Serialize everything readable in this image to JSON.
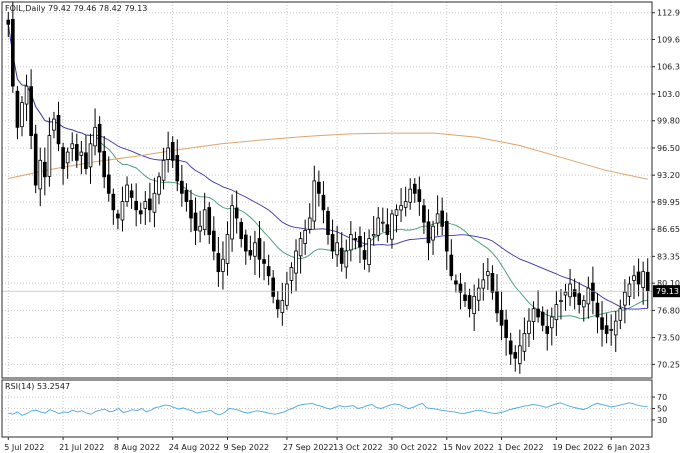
{
  "header": {
    "symbol": "FOIL",
    "timeframe": "Daily",
    "ohlc": "79.42 79.46 78.42 79.13"
  },
  "chart_data": [
    {
      "type": "candlestick",
      "title": "",
      "ylim": [
        68.6,
        114.2
      ],
      "y_ticks": [
        "112.90",
        "109.65",
        "106.35",
        "103.05",
        "99.80",
        "96.50",
        "93.20",
        "89.95",
        "86.65",
        "83.35",
        "80.10",
        "76.80",
        "73.50",
        "70.25"
      ],
      "x_ticks": [
        "5 Jul 2022",
        "21 Jul 2022",
        "8 Aug 2022",
        "24 Aug 2022",
        "9 Sep 2022",
        "27 Sep 2022",
        "13 Oct 2022",
        "30 Oct 2022",
        "15 Nov 2022",
        "1 Dec 2022",
        "19 Dec 2022",
        "6 Jan 2023"
      ],
      "x_tick_index": [
        0,
        12,
        24,
        36,
        48,
        61,
        72,
        84,
        96,
        108,
        120,
        132
      ],
      "current_price": "79.13",
      "closes": [
        111.5,
        104.0,
        99.0,
        102.0,
        104.0,
        98.0,
        92.0,
        95.0,
        93.0,
        98.0,
        100.0,
        97.0,
        94.0,
        96.0,
        97.0,
        95.0,
        96.0,
        94.0,
        97.0,
        99.0,
        96.0,
        93.0,
        91.0,
        89.0,
        88.0,
        90.0,
        92.0,
        90.5,
        89.0,
        88.5,
        90.0,
        89.0,
        91.0,
        93.0,
        95.0,
        96.5,
        95.0,
        92.5,
        91.0,
        90.0,
        88.0,
        86.5,
        87.0,
        89.0,
        86.0,
        84.0,
        81.5,
        83.0,
        86.0,
        89.5,
        88.0,
        85.5,
        84.0,
        83.5,
        85.0,
        83.0,
        82.5,
        81.0,
        78.5,
        77.0,
        78.0,
        80.0,
        82.0,
        84.0,
        85.5,
        86.5,
        88.0,
        92.5,
        91.0,
        89.0,
        86.0,
        84.0,
        85.0,
        82.5,
        84.0,
        86.0,
        85.5,
        84.5,
        83.0,
        85.5,
        86.0,
        88.0,
        87.5,
        86.0,
        88.5,
        89.0,
        89.5,
        90.0,
        91.5,
        91.0,
        90.0,
        87.5,
        85.0,
        87.0,
        88.5,
        87.0,
        84.0,
        81.0,
        80.0,
        79.0,
        78.0,
        77.0,
        78.5,
        79.5,
        80.5,
        81.5,
        79.0,
        76.5,
        75.0,
        73.5,
        71.5,
        71.0,
        72.5,
        74.0,
        75.5,
        77.0,
        76.0,
        75.0,
        74.0,
        76.0,
        77.5,
        78.0,
        79.0,
        80.0,
        78.5,
        77.5,
        78.0,
        79.5,
        78.0,
        76.0,
        74.5,
        74.0,
        74.5,
        75.5,
        77.0,
        79.0,
        80.0,
        81.0,
        80.0,
        81.5,
        79.13
      ],
      "ma_fast": {
        "period": 20,
        "color": "#3d9970"
      },
      "ma_mid": {
        "period": 40,
        "color": "#3b33a6"
      },
      "ma_slow": {
        "color": "#e0a36b"
      },
      "ma_slow_values": [
        92.8,
        93.9,
        94.8,
        95.5,
        96.3,
        97.0,
        97.5,
        97.9,
        98.2,
        98.3,
        98.3,
        97.8,
        96.8,
        95.3,
        93.8,
        92.7
      ],
      "bull_color": "#ffffff",
      "bear_color": "#000000"
    },
    {
      "type": "line",
      "title": "RSI(14) 53.2547",
      "ylim": [
        0,
        100
      ],
      "y_ticks": [
        "70",
        "50",
        "30"
      ],
      "series": [
        {
          "color": "#4aa8e0",
          "values": [
            42,
            40,
            44,
            38,
            41,
            46,
            47,
            44,
            42,
            48,
            45,
            41,
            44,
            43,
            47,
            44,
            46,
            42,
            40,
            45,
            47,
            49,
            44,
            46,
            50,
            43,
            45,
            48,
            46,
            50,
            44,
            47,
            52,
            53,
            56,
            55,
            52,
            49,
            51,
            48,
            46,
            42,
            44,
            45,
            47,
            41,
            39,
            43,
            50,
            49,
            47,
            44,
            42,
            44,
            46,
            45,
            43,
            41,
            40,
            42,
            44,
            48,
            51,
            55,
            57,
            58,
            59,
            56,
            54,
            51,
            49,
            52,
            55,
            53,
            54,
            55,
            50,
            52,
            55,
            57,
            52,
            50,
            53,
            56,
            58,
            57,
            53,
            50,
            52,
            56,
            59,
            51,
            50,
            49,
            47,
            46,
            45,
            44,
            42,
            41,
            43,
            45,
            47,
            46,
            44,
            42,
            41,
            43,
            45,
            48,
            50,
            52,
            54,
            55,
            57,
            56,
            54,
            52,
            55,
            58,
            60,
            57,
            54,
            52,
            50,
            48,
            51,
            56,
            59,
            57,
            55,
            53,
            54,
            56,
            58,
            60,
            58,
            55,
            54,
            53.25
          ]
        }
      ]
    }
  ]
}
